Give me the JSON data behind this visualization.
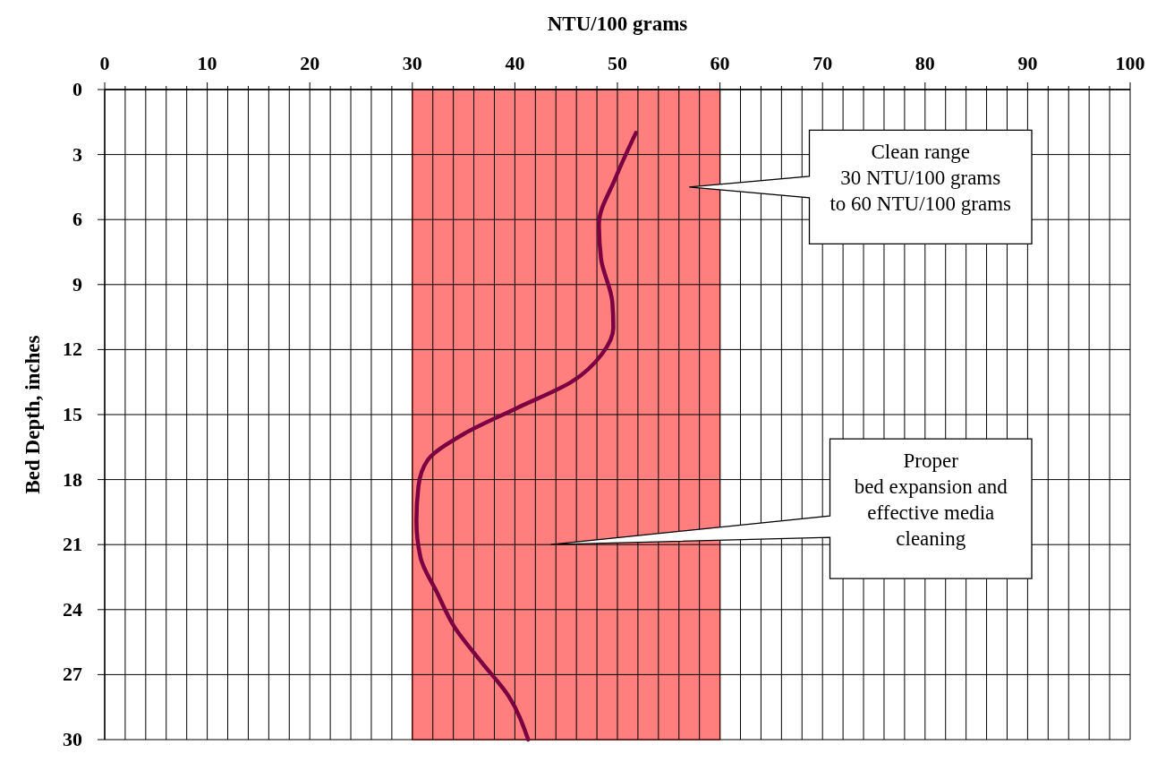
{
  "chart_data": {
    "type": "line",
    "xlabel": "NTU/100 grams",
    "ylabel": "Bed Depth, inches",
    "xlim": [
      0,
      100
    ],
    "xticks": [
      0,
      {
        "value": 2,
        "label": null
      },
      {
        "value": 4,
        "label": null
      },
      {
        "value": 6,
        "label": null
      },
      {
        "value": 8,
        "label": null
      },
      10,
      {
        "value": 12,
        "label": null
      },
      {
        "value": 14,
        "label": null
      },
      {
        "value": 16,
        "label": null
      },
      {
        "value": 18,
        "label": null
      },
      20,
      {
        "value": 22,
        "label": null
      },
      {
        "value": 24,
        "label": null
      },
      {
        "value": 26,
        "label": null
      },
      {
        "value": 28,
        "label": null
      },
      30,
      {
        "value": 32,
        "label": null
      },
      {
        "value": 34,
        "label": null
      },
      {
        "value": 36,
        "label": null
      },
      {
        "value": 38,
        "label": null
      },
      40,
      {
        "value": 42,
        "label": null
      },
      {
        "value": 44,
        "label": null
      },
      {
        "value": 46,
        "label": null
      },
      {
        "value": 48,
        "label": null
      },
      50,
      {
        "value": 52,
        "label": null
      },
      {
        "value": 54,
        "label": null
      },
      {
        "value": 56,
        "label": null
      },
      {
        "value": 58,
        "label": null
      },
      60,
      {
        "value": 62,
        "label": null
      },
      {
        "value": 64,
        "label": null
      },
      {
        "value": 66,
        "label": null
      },
      {
        "value": 68,
        "label": null
      },
      70,
      {
        "value": 72,
        "label": null
      },
      {
        "value": 74,
        "label": null
      },
      {
        "value": 76,
        "label": null
      },
      {
        "value": 78,
        "label": null
      },
      80,
      {
        "value": 82,
        "label": null
      },
      {
        "value": 84,
        "label": null
      },
      {
        "value": 86,
        "label": null
      },
      {
        "value": 88,
        "label": null
      },
      90,
      {
        "value": 92,
        "label": null
      },
      {
        "value": 94,
        "label": null
      },
      {
        "value": 96,
        "label": null
      },
      {
        "value": 98,
        "label": null
      },
      100
    ],
    "ylim": [
      30,
      0
    ],
    "yticks": [
      0,
      3,
      6,
      9,
      12,
      15,
      18,
      21,
      24,
      27,
      30
    ],
    "grid": true,
    "marker": "none",
    "line_style": "solid",
    "series": [
      {
        "color": "#7b0041",
        "x": [
          51.8,
          49.8,
          48.2,
          48.4,
          49.5,
          49.6,
          48.5,
          45.5,
          40.2,
          35,
          31.5,
          30.6,
          30.4,
          30.8,
          32.4,
          34.1,
          36.7,
          39.4,
          41.3
        ],
        "values": [
          2,
          4.1,
          6.2,
          7.8,
          9.8,
          11,
          12.2,
          13.5,
          14.7,
          15.9,
          17.1,
          18.3,
          19.9,
          21.6,
          23.2,
          24.8,
          26.4,
          28,
          30
        ]
      }
    ],
    "bands": [
      {
        "axis": "x",
        "from": 30,
        "to": 60,
        "color": "#ff7f7f"
      }
    ],
    "annotations": [
      "Clean range\n30 NTU/100 grams\nto 60 NTU/100 grams",
      "Proper\nbed expansion and\neffective media\ncleaning"
    ]
  }
}
